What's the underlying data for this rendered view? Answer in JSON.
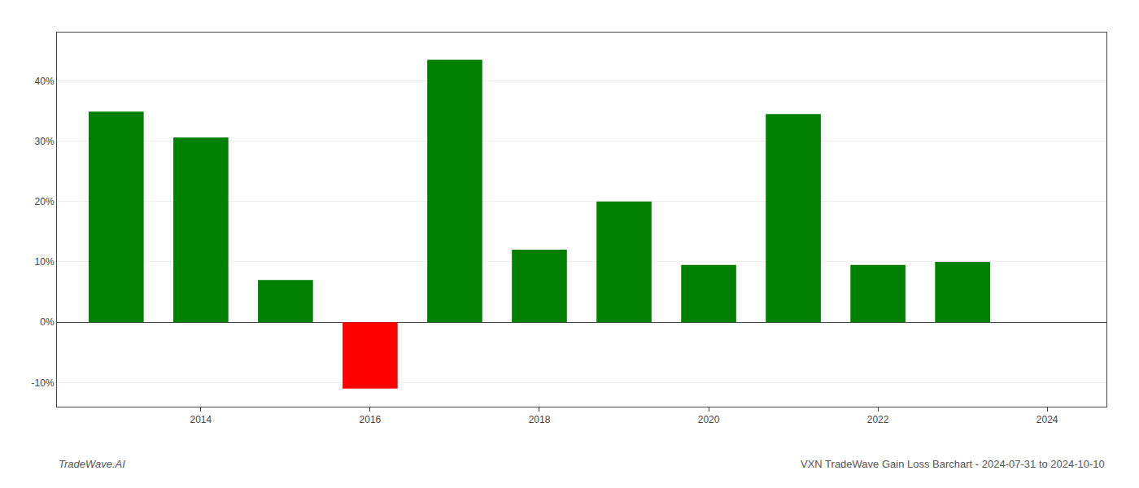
{
  "chart_data": {
    "type": "bar",
    "x": [
      2013,
      2014,
      2015,
      2016,
      2017,
      2018,
      2019,
      2020,
      2021,
      2022,
      2023
    ],
    "values": [
      34.9,
      30.6,
      7.0,
      -11.0,
      43.5,
      12.0,
      20.0,
      9.5,
      34.5,
      9.5,
      10.0
    ],
    "colors": [
      "#008000",
      "#008000",
      "#008000",
      "#ff0000",
      "#008000",
      "#008000",
      "#008000",
      "#008000",
      "#008000",
      "#008000",
      "#008000"
    ],
    "xlim": [
      2012.3,
      2024.7
    ],
    "xticks": [
      2014,
      2016,
      2018,
      2020,
      2022,
      2024
    ],
    "ylim": [
      -14,
      48
    ],
    "yticks": [
      {
        "value": -10,
        "label": "-10%"
      },
      {
        "value": 0,
        "label": "0%"
      },
      {
        "value": 10,
        "label": "10%"
      },
      {
        "value": 20,
        "label": "20%"
      },
      {
        "value": 30,
        "label": "30%"
      },
      {
        "value": 40,
        "label": "40%"
      }
    ],
    "grid": true,
    "annotations": [
      {
        "text": "TradeWave.AI"
      },
      {
        "text": "VXN TradeWave Gain Loss Barchart - 2024-07-31 to 2024-10-10"
      }
    ]
  }
}
